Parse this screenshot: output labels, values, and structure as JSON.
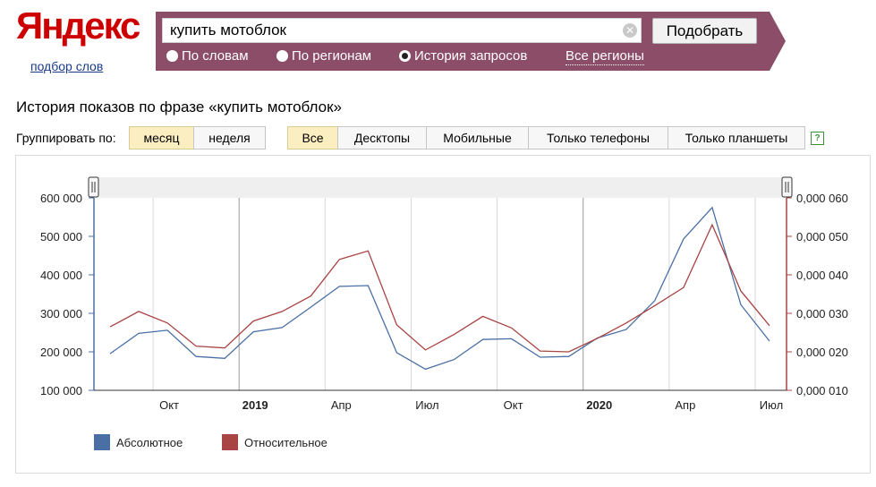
{
  "header": {
    "logo": "Яндекс",
    "logo_sub": "подбор слов"
  },
  "search": {
    "query": "купить мотоблок",
    "button": "Подобрать",
    "clear_icon": "x-circle-icon",
    "modes": [
      {
        "label": "По словам",
        "selected": false
      },
      {
        "label": "По регионам",
        "selected": false
      },
      {
        "label": "История запросов",
        "selected": true
      }
    ],
    "regions": "Все регионы"
  },
  "page": {
    "title": "История показов по фразе «купить мотоблок»",
    "group_label": "Группировать по:",
    "group_buttons": [
      {
        "label": "месяц",
        "active": true
      },
      {
        "label": "неделя",
        "active": false
      }
    ],
    "device_buttons": [
      {
        "label": "Все",
        "active": true
      },
      {
        "label": "Десктопы",
        "active": false
      },
      {
        "label": "Мобильные",
        "active": false
      },
      {
        "label": "Только телефоны",
        "active": false
      },
      {
        "label": "Только планшеты",
        "active": false
      }
    ],
    "help_icon": "?"
  },
  "chart_data": {
    "type": "line",
    "x": [
      "2018-08",
      "2018-09",
      "2018-10",
      "2018-11",
      "2018-12",
      "2019-01",
      "2019-02",
      "2019-03",
      "2019-04",
      "2019-05",
      "2019-06",
      "2019-07",
      "2019-08",
      "2019-09",
      "2019-10",
      "2019-11",
      "2019-12",
      "2020-01",
      "2020-02",
      "2020-03",
      "2020-04",
      "2020-05",
      "2020-06",
      "2020-07"
    ],
    "x_tick_labels": [
      "Окт",
      "2019",
      "Апр",
      "Июл",
      "Окт",
      "2020",
      "Апр",
      "Июл"
    ],
    "y_left_ticks": [
      "600 000",
      "500 000",
      "400 000",
      "300 000",
      "200 000",
      "100 000"
    ],
    "y_right_ticks": [
      "0,000 060",
      "0,000 050",
      "0,000 040",
      "0,000 030",
      "0,000 020",
      "0,000 010"
    ],
    "y_left_range": [
      100000,
      600000
    ],
    "y_right_range": [
      1e-05,
      6e-05
    ],
    "series": [
      {
        "name": "Абсолютное",
        "axis": "left",
        "color": "#4a6fa5",
        "values": [
          195000,
          248000,
          256000,
          188000,
          183000,
          252000,
          263000,
          316000,
          370000,
          372000,
          198000,
          155000,
          180000,
          232000,
          234000,
          186000,
          188000,
          236000,
          258000,
          333000,
          493000,
          575000,
          322000,
          228000
        ]
      },
      {
        "name": "Относительное",
        "axis": "right",
        "color": "#a84444",
        "values": [
          2.65e-05,
          3.05e-05,
          2.75e-05,
          2.15e-05,
          2.1e-05,
          2.8e-05,
          3.05e-05,
          3.45e-05,
          4.4e-05,
          4.62e-05,
          2.7e-05,
          2.05e-05,
          2.45e-05,
          2.92e-05,
          2.62e-05,
          2.02e-05,
          2e-05,
          2.35e-05,
          2.75e-05,
          3.2e-05,
          3.67e-05,
          5.3e-05,
          3.58e-05,
          2.68e-05
        ]
      }
    ],
    "grid": "vertical",
    "legend_position": "bottom-left"
  }
}
